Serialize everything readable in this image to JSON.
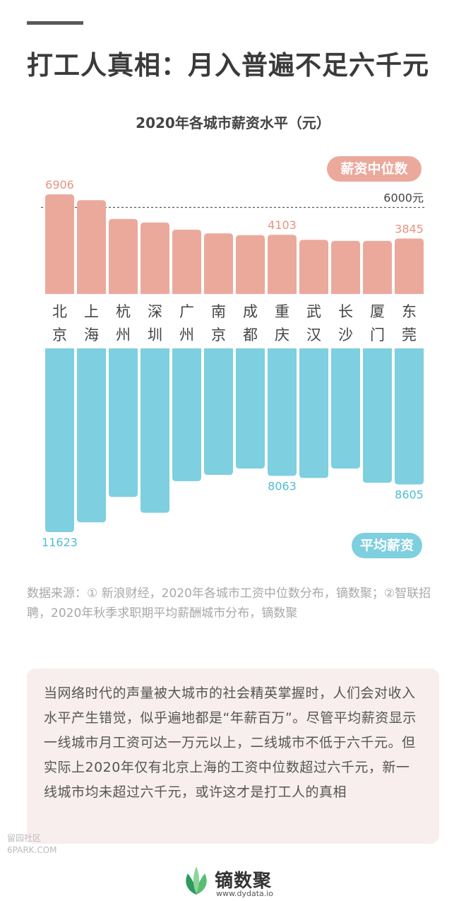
{
  "header": {
    "title": "打工人真相：月入普遍不足六千元"
  },
  "chart_data": {
    "type": "bar",
    "title": "2020年各城市薪资水平（元）",
    "categories": [
      "北京",
      "上海",
      "杭州",
      "深圳",
      "广州",
      "南京",
      "成都",
      "重庆",
      "武汉",
      "长沙",
      "厦门",
      "东莞"
    ],
    "series": [
      {
        "name": "薪资中位数",
        "values": [
          6906,
          6500,
          5200,
          4950,
          4460,
          4200,
          4080,
          4103,
          3750,
          3680,
          3680,
          3845
        ],
        "color": "#eba99c"
      },
      {
        "name": "平均薪资",
        "values": [
          11623,
          11000,
          9400,
          10400,
          8400,
          8000,
          7600,
          8063,
          8200,
          7600,
          8500,
          8605
        ],
        "color": "#7ecfdf"
      }
    ],
    "data_labels": {
      "薪资中位数": {
        "北京": "6906",
        "重庆": "4103",
        "东莞": "3845"
      },
      "平均薪资": {
        "北京": "11623",
        "重庆": "8063",
        "东莞": "8605"
      }
    },
    "reference_line": {
      "value": 6000,
      "label": "6000元"
    },
    "label_colors": {
      "median": "#e7947f",
      "avg": "#4fbdd0"
    }
  },
  "source": {
    "text": "数据来源：① 新浪财经，2020年各城市工资中位数分布，镝数聚；②智联招聘，2020年秋季求职期平均薪酬城市分布，镝数聚"
  },
  "note": {
    "text": "当网络时代的声量被大城市的社会精英掌握时，人们会对收入水平产生错觉，似乎遍地都是“年薪百万”。尽管平均薪资显示一线城市月工资可达一万元以上，二线城市不低于六千元。但实际上2020年仅有北京上海的工资中位数超过六千元，新一线城市均未超过六千元，或许这才是打工人的真相"
  },
  "brand": {
    "name": "镝数聚",
    "url": "www.dydata.io"
  },
  "forum": {
    "name": "留园社区",
    "domain": "6PARK.COM"
  },
  "colors": {
    "median": "#eba99c",
    "avg": "#7ecfdf",
    "note_bg": "#f8eeee"
  }
}
